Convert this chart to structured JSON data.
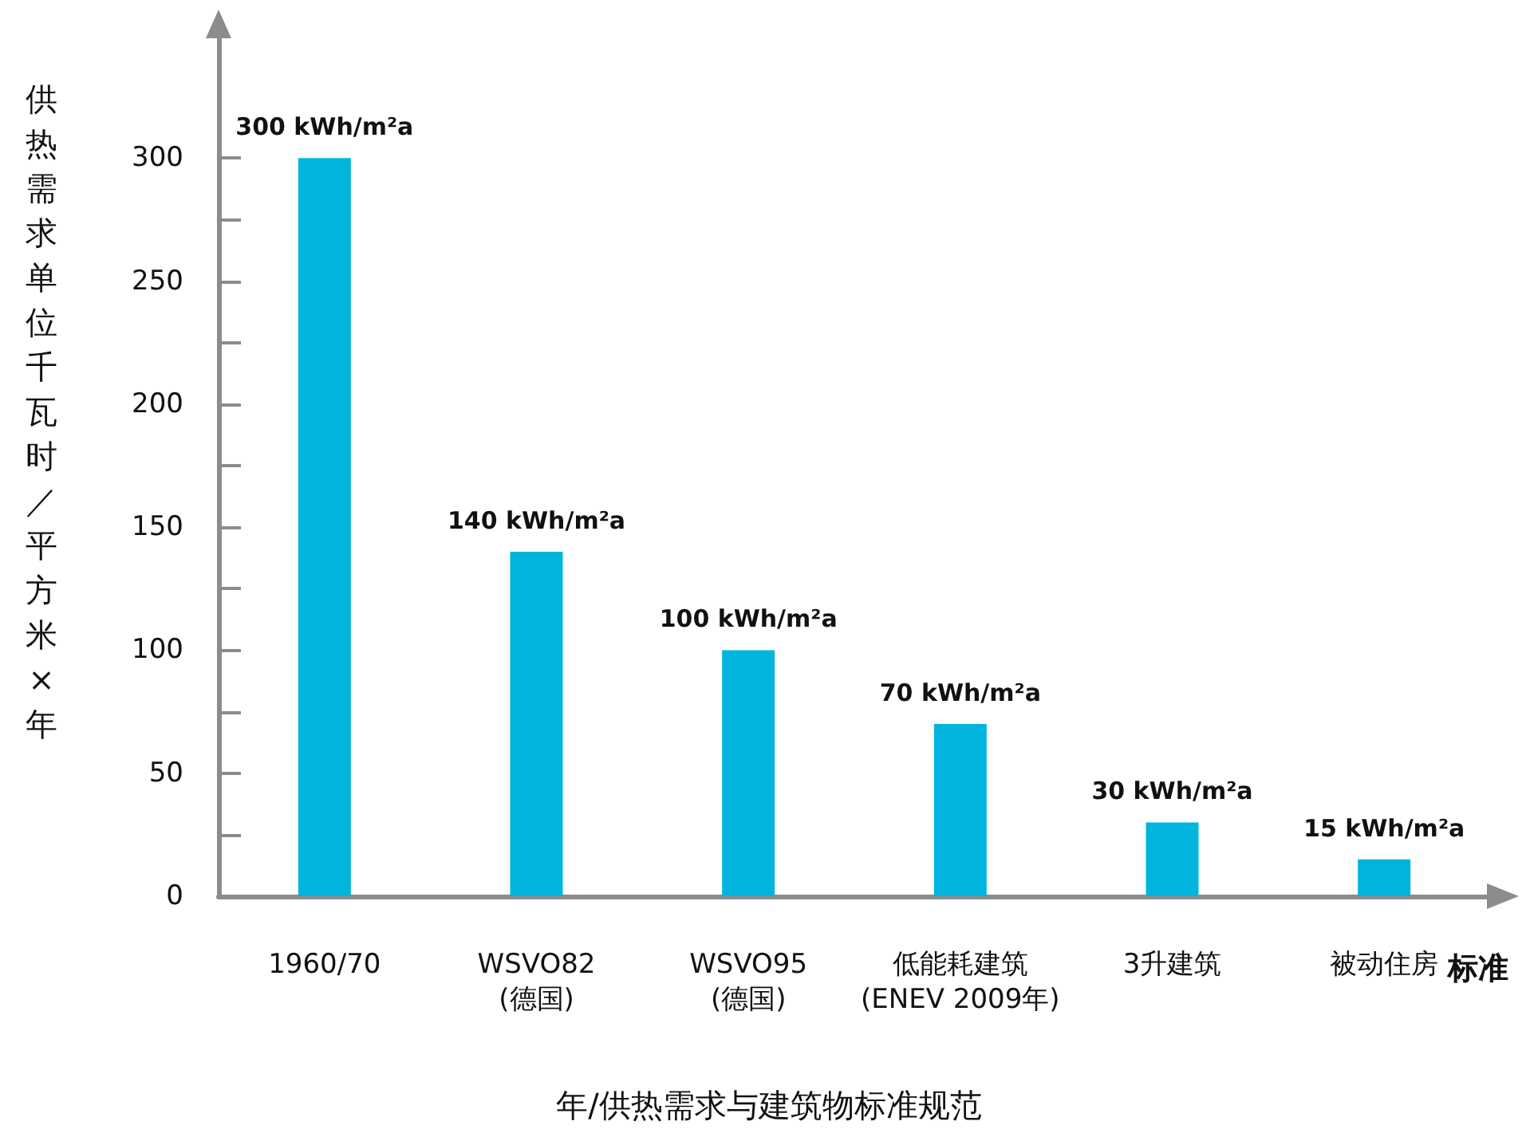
{
  "chart_data": {
    "type": "bar",
    "categories": [
      "1960/70",
      "WSVO82\n(德国)",
      "WSVO95\n(德国)",
      "低能耗建筑\n(ENEV 2009年)",
      "3升建筑",
      "被动住房"
    ],
    "values": [
      300,
      140,
      100,
      70,
      30,
      15
    ],
    "value_labels": [
      "300 kWh/m²a",
      "140 kWh/m²a",
      "100 kWh/m²a",
      "70 kWh/m²a",
      "30 kWh/m²a",
      "15 kWh/m²a"
    ],
    "color": "#00b5dd",
    "ylim": [
      0,
      350
    ],
    "yticks": [
      0,
      {
        "value": 25,
        "label": null
      },
      50,
      {
        "value": 75,
        "label": null
      },
      100,
      {
        "value": 125,
        "label": null
      },
      150,
      {
        "value": 175,
        "label": null
      },
      200,
      {
        "value": 225,
        "label": null
      },
      250,
      {
        "value": 275,
        "label": null
      },
      300
    ],
    "xlabel": "标准",
    "ylabel": "供热需求单位千瓦时／平方米×年",
    "annotations": [
      "年/供热需求与建筑物标准规范"
    ],
    "grid": false
  }
}
